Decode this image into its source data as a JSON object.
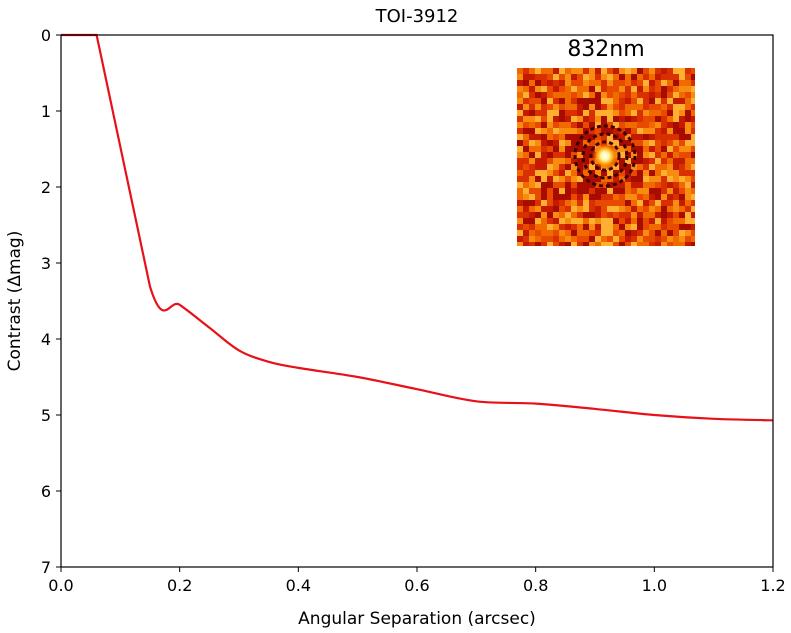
{
  "chart_data": {
    "type": "line",
    "title": "TOI-3912",
    "xlabel": "Angular Separation (arcsec)",
    "ylabel": "Contrast (Δmag)",
    "xlim": [
      0.0,
      1.2
    ],
    "ylim": [
      7,
      0
    ],
    "y_inverted": true,
    "grid": false,
    "xticks": [
      {
        "value": 0.0,
        "label": "0.0"
      },
      {
        "value": 0.2,
        "label": "0.2"
      },
      {
        "value": 0.4,
        "label": "0.4"
      },
      {
        "value": 0.6,
        "label": "0.6"
      },
      {
        "value": 0.8,
        "label": "0.8"
      },
      {
        "value": 1.0,
        "label": "1.0"
      },
      {
        "value": 1.2,
        "label": "1.2"
      }
    ],
    "yticks": [
      {
        "value": 0,
        "label": "0"
      },
      {
        "value": 1,
        "label": "1"
      },
      {
        "value": 2,
        "label": "2"
      },
      {
        "value": 3,
        "label": "3"
      },
      {
        "value": 4,
        "label": "4"
      },
      {
        "value": 5,
        "label": "5"
      },
      {
        "value": 6,
        "label": "6"
      },
      {
        "value": 7,
        "label": "7"
      }
    ],
    "series": [
      {
        "color": "#e8111a",
        "x": [
          0.0,
          0.06,
          0.15,
          0.2,
          0.25,
          0.3,
          0.35,
          0.4,
          0.5,
          0.6,
          0.7,
          0.8,
          0.9,
          1.0,
          1.1,
          1.2
        ],
        "y": [
          0.0,
          0.0,
          3.31,
          3.55,
          3.85,
          4.15,
          4.3,
          4.38,
          4.5,
          4.66,
          4.82,
          4.85,
          4.92,
          5.0,
          5.05,
          5.07
        ]
      }
    ],
    "inset": {
      "label": "832nm",
      "label_color": "#e8111a",
      "description_colormap": "hot"
    }
  }
}
